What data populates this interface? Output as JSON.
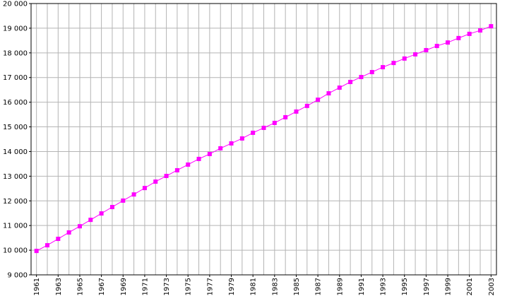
{
  "chart_data": {
    "type": "line",
    "x": [
      1961,
      1962,
      1963,
      1964,
      1965,
      1966,
      1967,
      1968,
      1969,
      1970,
      1971,
      1972,
      1973,
      1974,
      1975,
      1976,
      1977,
      1978,
      1979,
      1980,
      1981,
      1982,
      1983,
      1984,
      1985,
      1986,
      1987,
      1988,
      1989,
      1990,
      1991,
      1992,
      1993,
      1994,
      1995,
      1996,
      1997,
      1998,
      1999,
      2000,
      2001,
      2002,
      2003
    ],
    "values": [
      9970,
      10200,
      10460,
      10720,
      10970,
      11230,
      11490,
      11750,
      12010,
      12260,
      12520,
      12780,
      13010,
      13240,
      13470,
      13700,
      13900,
      14130,
      14330,
      14530,
      14760,
      14960,
      15160,
      15390,
      15620,
      15850,
      16100,
      16360,
      16590,
      16820,
      17020,
      17220,
      17420,
      17590,
      17770,
      17940,
      18110,
      18280,
      18420,
      18600,
      18770,
      18910,
      19080
    ],
    "color": "#ff00ff",
    "xlim": [
      1960.5,
      2003.5
    ],
    "xticks": [
      1961,
      1963,
      1965,
      1967,
      1969,
      1971,
      1973,
      1975,
      1977,
      1979,
      1981,
      1983,
      1985,
      1987,
      1989,
      1991,
      1993,
      1995,
      1997,
      1999,
      2001,
      2003
    ],
    "ylim": [
      9000,
      20000
    ],
    "yticks": [
      {
        "value": 9000,
        "label": "9 000"
      },
      {
        "value": 10000,
        "label": "10 000"
      },
      {
        "value": 11000,
        "label": "11 000"
      },
      {
        "value": 12000,
        "label": "12 000"
      },
      {
        "value": 13000,
        "label": "13 000"
      },
      {
        "value": 14000,
        "label": "14 000"
      },
      {
        "value": 15000,
        "label": "15 000"
      },
      {
        "value": 16000,
        "label": "16 000"
      },
      {
        "value": 17000,
        "label": "17 000"
      },
      {
        "value": 18000,
        "label": "18 000"
      },
      {
        "value": 19000,
        "label": "19 000"
      },
      {
        "value": 20000,
        "label": "20 000"
      }
    ],
    "grid": true
  }
}
